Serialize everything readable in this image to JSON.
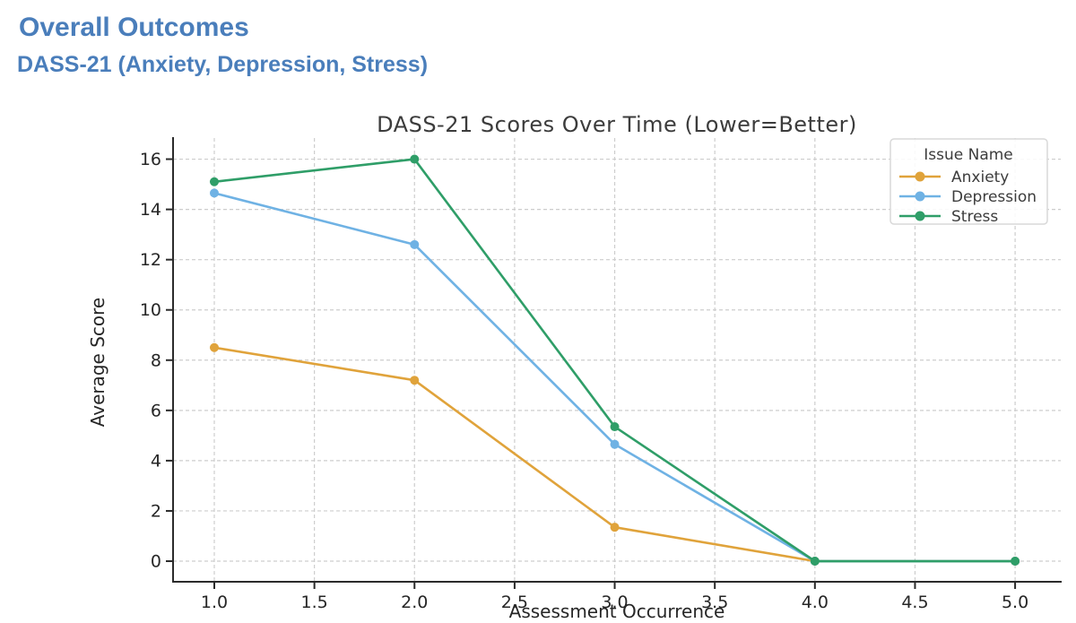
{
  "page": {
    "heading": "Overall Outcomes",
    "subheading": "DASS-21 (Anxiety, Depression, Stress)",
    "heading_color": "#4a7ebb"
  },
  "chart_data": {
    "type": "line",
    "title": "DASS-21 Scores Over Time (Lower=Better)",
    "xlabel": "Assessment Occurrence",
    "ylabel": "Average Score",
    "legend_title": "Issue Name",
    "legend_position": "upper right",
    "grid": true,
    "background": "#ffffff",
    "x": [
      1,
      2,
      3,
      4,
      5
    ],
    "xlim": [
      0.794,
      5.228
    ],
    "ylim": [
      -0.82,
      16.84
    ],
    "xticks": [
      1.0,
      1.5,
      2.0,
      2.5,
      3.0,
      3.5,
      4.0,
      4.5,
      5.0
    ],
    "yticks": [
      0,
      2,
      4,
      6,
      8,
      10,
      12,
      14,
      16
    ],
    "series": [
      {
        "name": "Anxiety",
        "color": "#e0a33b",
        "values": [
          8.5,
          7.2,
          1.35,
          0,
          0
        ]
      },
      {
        "name": "Depression",
        "color": "#6fb2e4",
        "values": [
          14.65,
          12.6,
          4.65,
          0,
          0
        ]
      },
      {
        "name": "Stress",
        "color": "#2f9e68",
        "values": [
          15.1,
          16.0,
          5.35,
          0,
          0
        ]
      }
    ]
  }
}
